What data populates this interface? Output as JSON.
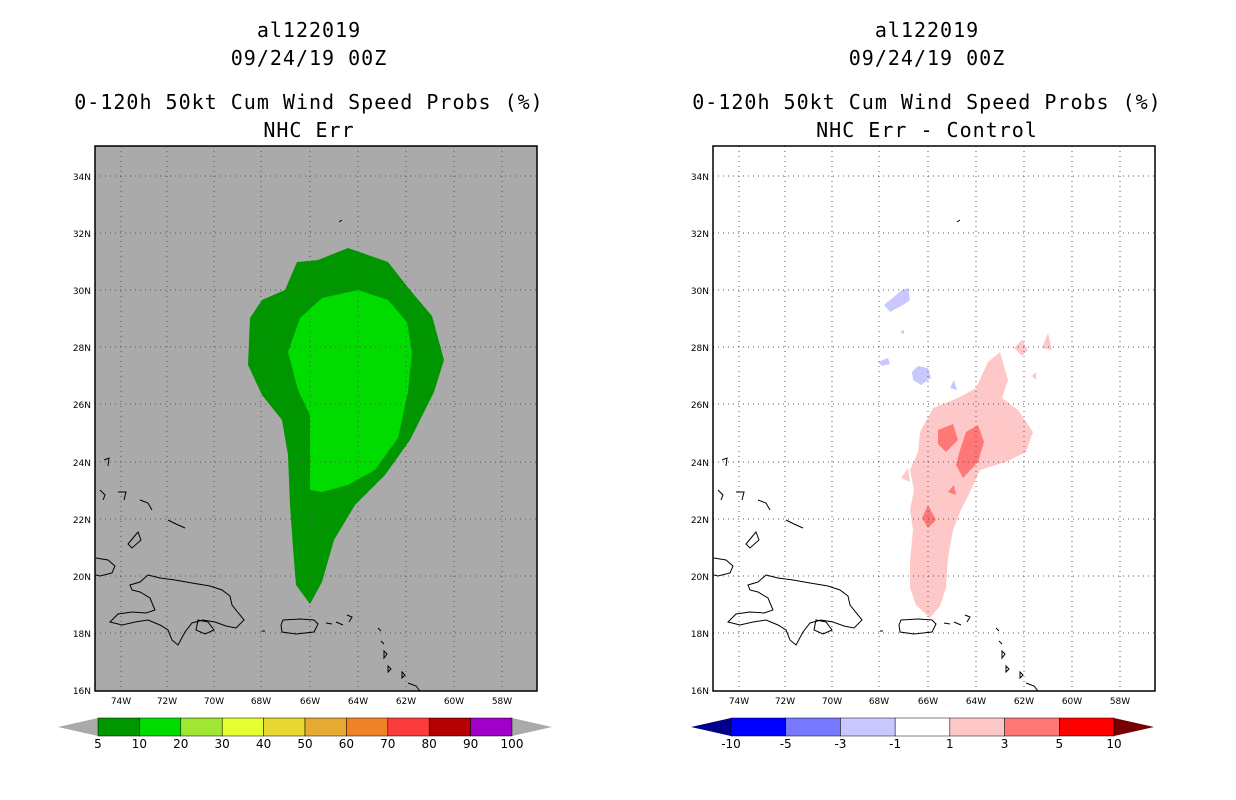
{
  "panels": [
    {
      "storm_id": "al122019",
      "datetime": "09/24/19 00Z",
      "title": "0-120h 50kt Cum Wind Speed Probs (%)",
      "subtitle": "NHC Err",
      "colorbar_labels": [
        "5",
        "10",
        "20",
        "30",
        "40",
        "50",
        "60",
        "70",
        "80",
        "90",
        "100"
      ],
      "colorbar_colors": [
        "#009600",
        "#00dc00",
        "#a0e632",
        "#e6ff32",
        "#e6d732",
        "#e6aa32",
        "#f08228",
        "#fa3c3c",
        "#b40000",
        "#a000c8"
      ]
    },
    {
      "storm_id": "al122019",
      "datetime": "09/24/19 00Z",
      "title": "0-120h 50kt Cum Wind Speed Probs (%)",
      "subtitle": "NHC Err - Control",
      "colorbar_labels": [
        "-10",
        "-5",
        "-3",
        "-1",
        "1",
        "3",
        "5",
        "10"
      ],
      "colorbar_colors": [
        "#0000ff",
        "#7878ff",
        "#c8c8ff",
        "#ffffff",
        "#ffc8c8",
        "#ff7878",
        "#ff0000"
      ]
    }
  ],
  "map": {
    "lat_labels": [
      "34N",
      "32N",
      "30N",
      "28N",
      "26N",
      "24N",
      "22N",
      "20N",
      "18N",
      "16N"
    ],
    "lon_labels": [
      "74W",
      "72W",
      "70W",
      "68W",
      "66W",
      "64W",
      "62W",
      "60W",
      "58W"
    ]
  }
}
